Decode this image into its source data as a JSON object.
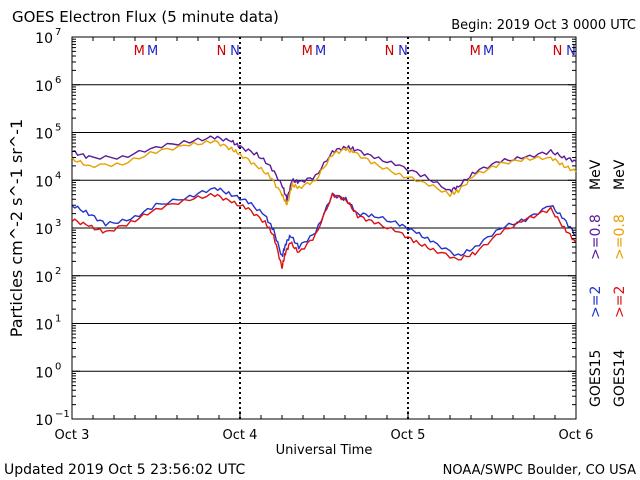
{
  "header": {
    "title": "GOES Electron Flux (5 minute data)",
    "begin": "Begin: 2019 Oct 3 0000 UTC"
  },
  "footer": {
    "updated": "Updated 2019 Oct  5 23:56:02 UTC",
    "credit": "NOAA/SWPC Boulder, CO USA"
  },
  "legend": {
    "goes15": "GOES15",
    "goes14": "GOES14",
    "e2_15": ">=2",
    "e2_14": ">=2",
    "e08_15": ">=0.8",
    "e08_14": ">=0.8",
    "unit_15": "MeV",
    "unit_14": "MeV"
  },
  "markers": [
    {
      "text": "M",
      "color": "#cc0000",
      "day": 0.4
    },
    {
      "text": "M",
      "color": "#2222cc",
      "day": 0.48
    },
    {
      "text": "N",
      "color": "#cc0000",
      "day": 0.89
    },
    {
      "text": "N",
      "color": "#2222cc",
      "day": 0.97
    },
    {
      "text": "M",
      "color": "#cc0000",
      "day": 1.4
    },
    {
      "text": "M",
      "color": "#2222cc",
      "day": 1.48
    },
    {
      "text": "N",
      "color": "#cc0000",
      "day": 1.89
    },
    {
      "text": "N",
      "color": "#2222cc",
      "day": 1.97
    },
    {
      "text": "M",
      "color": "#cc0000",
      "day": 2.4
    },
    {
      "text": "M",
      "color": "#2222cc",
      "day": 2.48
    },
    {
      "text": "N",
      "color": "#cc0000",
      "day": 2.89
    },
    {
      "text": "N",
      "color": "#2222cc",
      "day": 2.97
    }
  ],
  "chart_data": {
    "type": "line",
    "xlabel": "Universal Time",
    "ylabel": "Particles cm^-2 s^-1 sr^-1",
    "xlim": [
      0,
      3
    ],
    "ylim": [
      0.1,
      10000000
    ],
    "yscale": "log",
    "x_ticks": [
      {
        "day": 0,
        "label": "Oct 3"
      },
      {
        "day": 1,
        "label": "Oct 4"
      },
      {
        "day": 2,
        "label": "Oct 5"
      },
      {
        "day": 3,
        "label": "Oct 6"
      }
    ],
    "y_ticks": [
      {
        "exp": -1,
        "label": "10",
        "sup": "−1"
      },
      {
        "exp": 0,
        "label": "10",
        "sup": "0"
      },
      {
        "exp": 1,
        "label": "10",
        "sup": "1"
      },
      {
        "exp": 2,
        "label": "10",
        "sup": "2"
      },
      {
        "exp": 3,
        "label": "10",
        "sup": "3"
      },
      {
        "exp": 4,
        "label": "10",
        "sup": "4"
      },
      {
        "exp": 5,
        "label": "10",
        "sup": "5"
      },
      {
        "exp": 6,
        "label": "10",
        "sup": "6"
      },
      {
        "exp": 7,
        "label": "10",
        "sup": "7"
      }
    ],
    "threshold": 1000,
    "series": [
      {
        "name": "GOES15 >=0.8 MeV",
        "color": "#5a1a9a",
        "x": [
          0,
          0.1,
          0.3,
          0.5,
          0.7,
          0.85,
          0.95,
          1.0,
          1.1,
          1.18,
          1.25,
          1.28,
          1.31,
          1.35,
          1.45,
          1.55,
          1.63,
          1.68,
          1.8,
          1.95,
          2.1,
          2.25,
          2.3,
          2.4,
          2.55,
          2.7,
          2.85,
          2.93,
          3.0
        ],
        "y": [
          40000,
          30000,
          30000,
          50000,
          65000,
          80000,
          65000,
          50000,
          35000,
          20000,
          8000,
          4000,
          10000,
          9000,
          12000,
          40000,
          50000,
          45000,
          30000,
          20000,
          12000,
          6000,
          7500,
          15000,
          25000,
          30000,
          40000,
          30000,
          25000
        ]
      },
      {
        "name": "GOES14 >=0.8 MeV",
        "color": "#e8a000",
        "x": [
          0,
          0.1,
          0.3,
          0.5,
          0.7,
          0.85,
          0.95,
          1.0,
          1.1,
          1.18,
          1.25,
          1.28,
          1.31,
          1.35,
          1.45,
          1.55,
          1.63,
          1.68,
          1.8,
          1.95,
          2.1,
          2.25,
          2.3,
          2.4,
          2.55,
          2.7,
          2.85,
          2.93,
          3.0
        ],
        "y": [
          28000,
          20000,
          22000,
          40000,
          55000,
          65000,
          45000,
          35000,
          20000,
          12000,
          5000,
          3000,
          8000,
          7000,
          10000,
          35000,
          45000,
          38000,
          22000,
          13000,
          9000,
          5000,
          6000,
          13000,
          22000,
          28000,
          30000,
          20000,
          15000
        ]
      },
      {
        "name": "GOES15 >=2 MeV",
        "color": "#2233cc",
        "x": [
          0,
          0.1,
          0.2,
          0.35,
          0.5,
          0.7,
          0.85,
          0.95,
          1.05,
          1.15,
          1.2,
          1.25,
          1.27,
          1.3,
          1.35,
          1.45,
          1.55,
          1.63,
          1.7,
          1.8,
          1.95,
          2.05,
          2.15,
          2.3,
          2.4,
          2.55,
          2.7,
          2.85,
          2.93,
          3.0
        ],
        "y": [
          3000,
          2000,
          1200,
          1500,
          3000,
          4500,
          7000,
          5000,
          3500,
          1800,
          900,
          250,
          450,
          700,
          400,
          800,
          5000,
          4000,
          2000,
          1800,
          1200,
          800,
          500,
          260,
          400,
          1000,
          1500,
          3000,
          1500,
          700
        ]
      },
      {
        "name": "GOES14 >=2 MeV",
        "color": "#dd1111",
        "x": [
          0,
          0.1,
          0.2,
          0.35,
          0.5,
          0.7,
          0.85,
          0.95,
          1.05,
          1.15,
          1.2,
          1.25,
          1.27,
          1.3,
          1.35,
          1.45,
          1.55,
          1.63,
          1.7,
          1.8,
          1.95,
          2.05,
          2.15,
          2.3,
          2.4,
          2.55,
          2.7,
          2.85,
          2.93,
          3.0
        ],
        "y": [
          1500,
          1100,
          800,
          1300,
          2500,
          4000,
          5000,
          3500,
          2500,
          1300,
          700,
          150,
          300,
          500,
          300,
          700,
          5000,
          4000,
          1800,
          1300,
          800,
          500,
          350,
          220,
          300,
          800,
          1500,
          2500,
          1000,
          500
        ]
      }
    ]
  }
}
